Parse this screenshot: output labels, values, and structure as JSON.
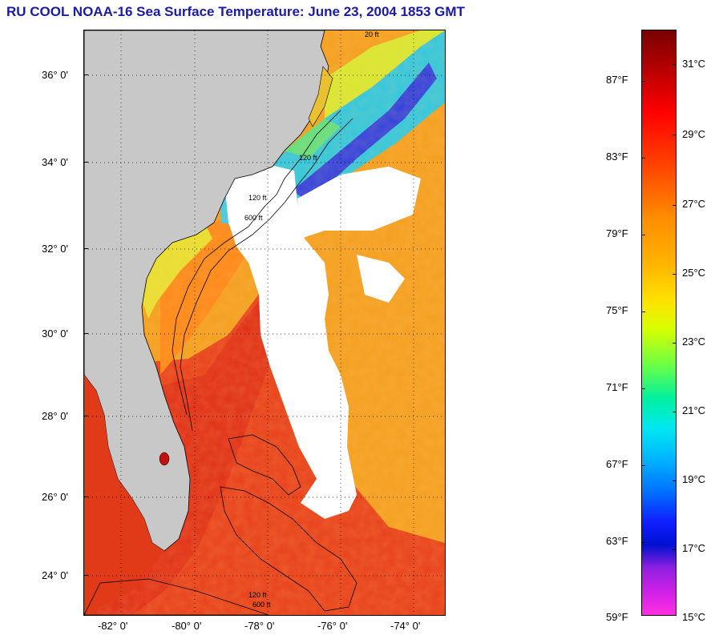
{
  "title": "RU COOL  NOAA-16  Sea Surface Temperature:  June 23, 2004 1853 GMT",
  "map": {
    "latitude_labels": [
      "36° 0'",
      "34° 0'",
      "32° 0'",
      "30° 0'",
      "28° 0'",
      "26° 0'",
      "24° 0'"
    ],
    "longitude_labels": [
      "-82° 0'",
      "-80° 0'",
      "-78° 0'",
      "-76° 0'",
      "-74° 0'"
    ],
    "isobath_labels": [
      "20 ft",
      "120 ft",
      "600 ft",
      "120 ft",
      "120 ft",
      "600 ft"
    ],
    "colors": {
      "land": "#c8c8c8",
      "cloud": "#ffffff",
      "gulf_stream": "#e83010",
      "shelf_warm": "#ff8a10",
      "offshore": "#f4a020",
      "cool_north": "#20c8e0",
      "cold_core": "#2040e0"
    }
  },
  "colorbar": {
    "fahrenheit_labels": [
      "87°F",
      "83°F",
      "79°F",
      "75°F",
      "71°F",
      "67°F",
      "63°F",
      "59°F"
    ],
    "celsius_labels": [
      "31°C",
      "29°C",
      "27°C",
      "25°C",
      "23°C",
      "21°C",
      "19°C",
      "17°C",
      "15°C"
    ]
  }
}
